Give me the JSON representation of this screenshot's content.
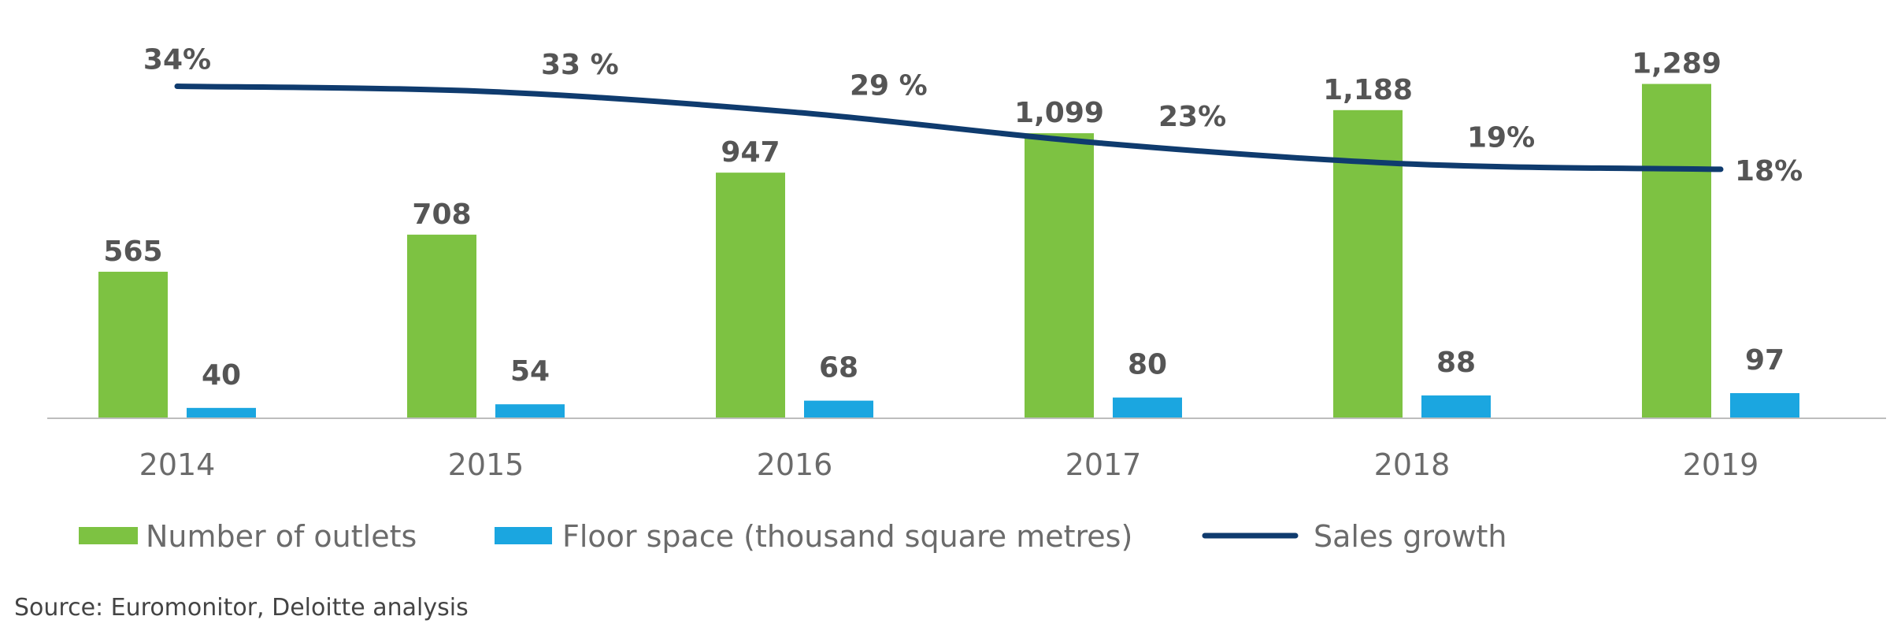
{
  "chart_data": {
    "type": "bar",
    "categories": [
      "2014",
      "2015",
      "2016",
      "2017",
      "2018",
      "2019"
    ],
    "series": [
      {
        "name": "Number of outlets",
        "kind": "bar",
        "color": "#7dc242",
        "values": [
          565,
          708,
          947,
          1099,
          1188,
          1289
        ],
        "labels": [
          "565",
          "708",
          "947",
          "1,099",
          "1,188",
          "1,289"
        ]
      },
      {
        "name": "Floor space (thousand square metres)",
        "kind": "bar",
        "color": "#1ba6e0",
        "values": [
          40,
          54,
          68,
          80,
          88,
          97
        ],
        "labels": [
          "40",
          "54",
          "68",
          "80",
          "88",
          "97"
        ]
      },
      {
        "name": "Sales growth",
        "kind": "line",
        "color": "#0f3b6e",
        "values": [
          34,
          33,
          29,
          23,
          19,
          18
        ],
        "labels": [
          "34%",
          "33 %",
          "29 %",
          "23%",
          "19%",
          "18%"
        ]
      }
    ],
    "ylim": [
      0,
      1400
    ],
    "y2lim": [
      -30,
      40
    ],
    "grid": false,
    "legend": "bottom",
    "source": "Source: Euromonitor, Deloitte analysis"
  }
}
